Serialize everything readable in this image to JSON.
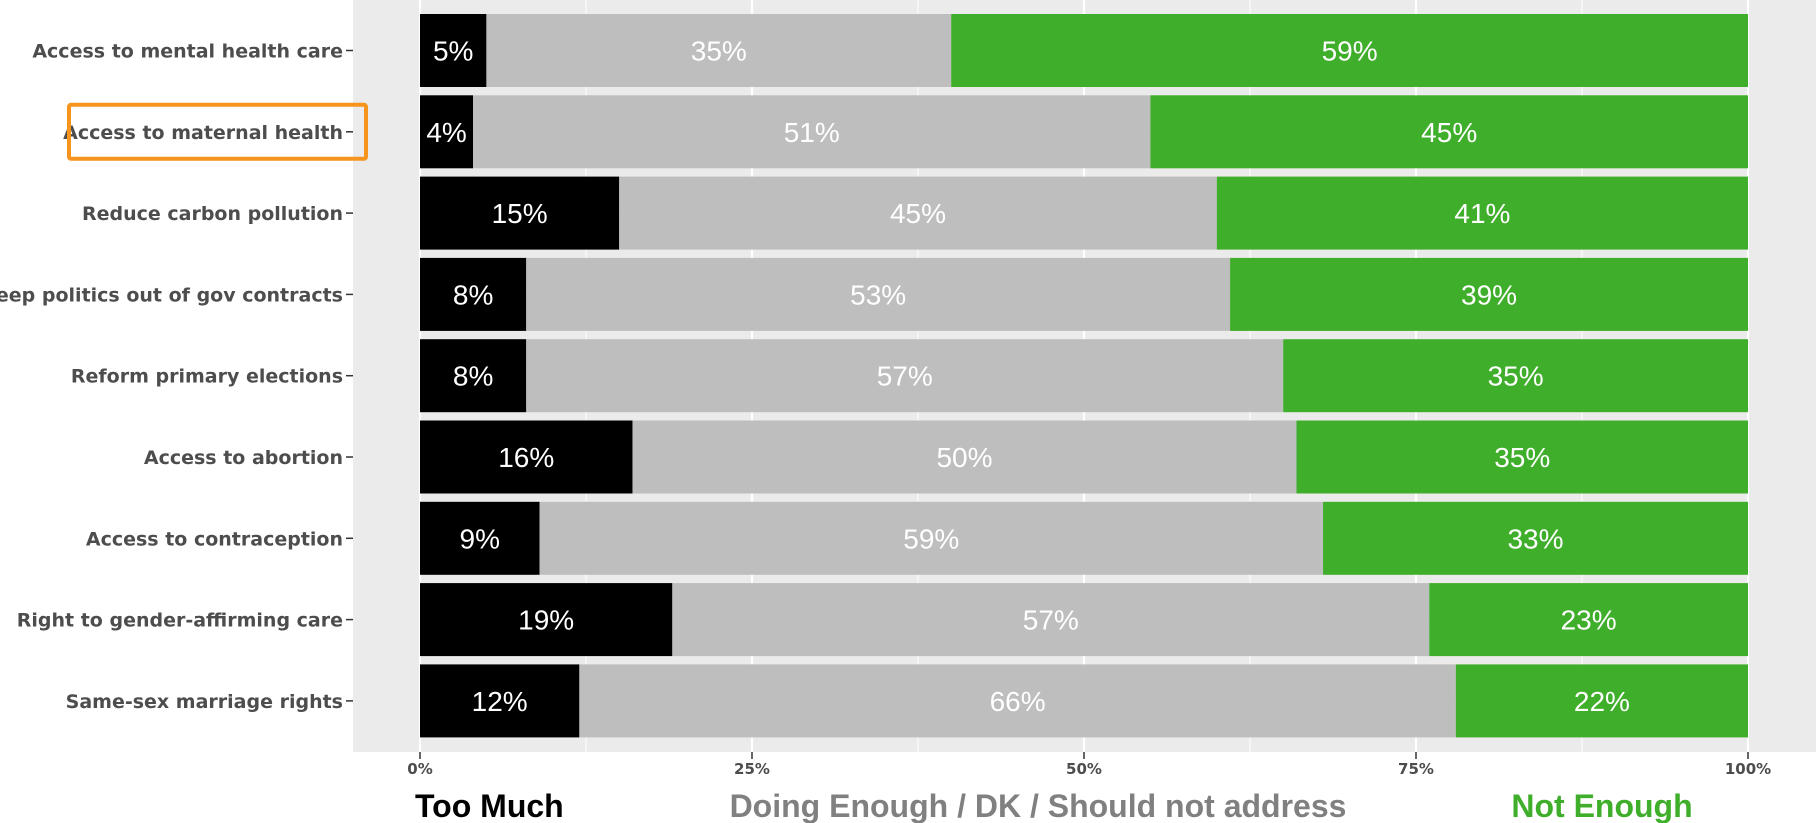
{
  "chart_data": {
    "type": "bar",
    "orientation": "horizontal",
    "stacked": true,
    "title": "",
    "xlabel": "",
    "ylabel": "",
    "categories": [
      "Access to mental health care",
      "Access to maternal health",
      "Reduce carbon pollution",
      "Keep politics out of gov contracts",
      "Reform primary elections",
      "Access to abortion",
      "Access to contraception",
      "Right to gender-affirming care",
      "Same-sex marriage rights"
    ],
    "highlighted_category": "Access to maternal health",
    "highlight_color": "#F7941D",
    "series": [
      {
        "name": "Too Much",
        "color": "#000000",
        "label_color": "#ffffff",
        "values": [
          5,
          4,
          15,
          8,
          8,
          16,
          9,
          19,
          12
        ]
      },
      {
        "name": "Doing Enough / DK / Should not address",
        "color": "#BEBEBE",
        "label_color": "#ffffff",
        "legend_color": "#808080",
        "values": [
          35,
          51,
          45,
          53,
          57,
          50,
          59,
          57,
          66
        ]
      },
      {
        "name": "Not Enough",
        "color": "#3FAE2A",
        "label_color": "#ffffff",
        "legend_color": "#3FAE2A",
        "values": [
          59,
          45,
          41,
          39,
          35,
          35,
          33,
          23,
          22
        ]
      }
    ],
    "value_suffix": "%",
    "xlim": [
      0,
      100
    ],
    "xticks": [
      0,
      25,
      50,
      75,
      100
    ],
    "xtick_labels": [
      "0%",
      "25%",
      "50%",
      "75%",
      "100%"
    ],
    "grid": true,
    "panel_background": "#EBEBEB",
    "legend_position": "bottom"
  }
}
